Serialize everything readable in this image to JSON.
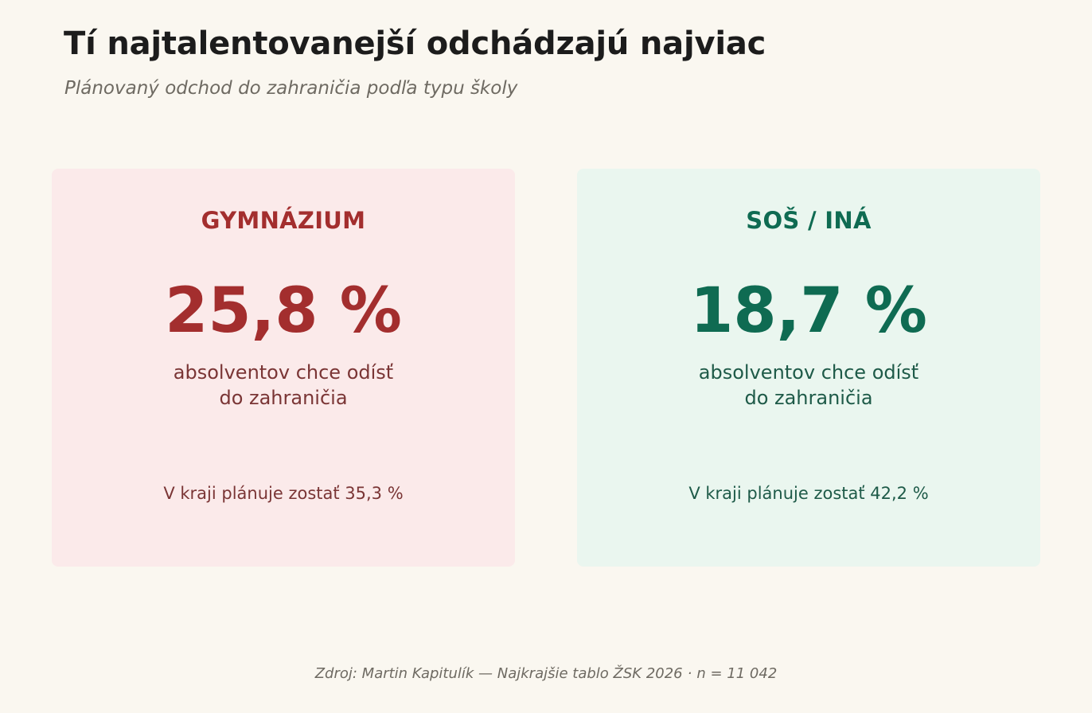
{
  "header": {
    "title": "Tí najtalentovanejší odchádzajú najviac",
    "subtitle": "Plánovaný odchod do zahraničia podľa typu školy"
  },
  "chart_data": {
    "type": "table",
    "title": "Tí najtalentovanejší odchádzajú najviac",
    "subtitle": "Plánovaný odchod do zahraničia podľa typu školy",
    "cards": [
      {
        "label": "GYMNÁZIUM",
        "value": 25.8,
        "value_text": "25,8 %",
        "description_line1": "absolventov chce odísť",
        "description_line2": "do zahraničia",
        "note": "V kraji plánuje zostať 35,3 %",
        "stay_value": 35.3,
        "colors": {
          "background": "#fbeaea",
          "accent": "#a32e2e",
          "text": "#7a3535"
        }
      },
      {
        "label": "SOŠ / INÁ",
        "value": 18.7,
        "value_text": "18,7 %",
        "description_line1": "absolventov chce odísť",
        "description_line2": "do zahraničia",
        "note": "V kraji plánuje zostať 42,2 %",
        "stay_value": 42.2,
        "colors": {
          "background": "#eaf6ef",
          "accent": "#0f6b52",
          "text": "#1e5a48"
        }
      }
    ]
  },
  "footer": {
    "source": "Zdroj: Martin Kapitulík — Najkrajšie tablo ŽSK 2026",
    "separator": "·",
    "sample": "n = 11 042"
  },
  "colors": {
    "page_background": "#faf7f0",
    "title": "#1c1c1c",
    "muted": "#6e6a62"
  }
}
